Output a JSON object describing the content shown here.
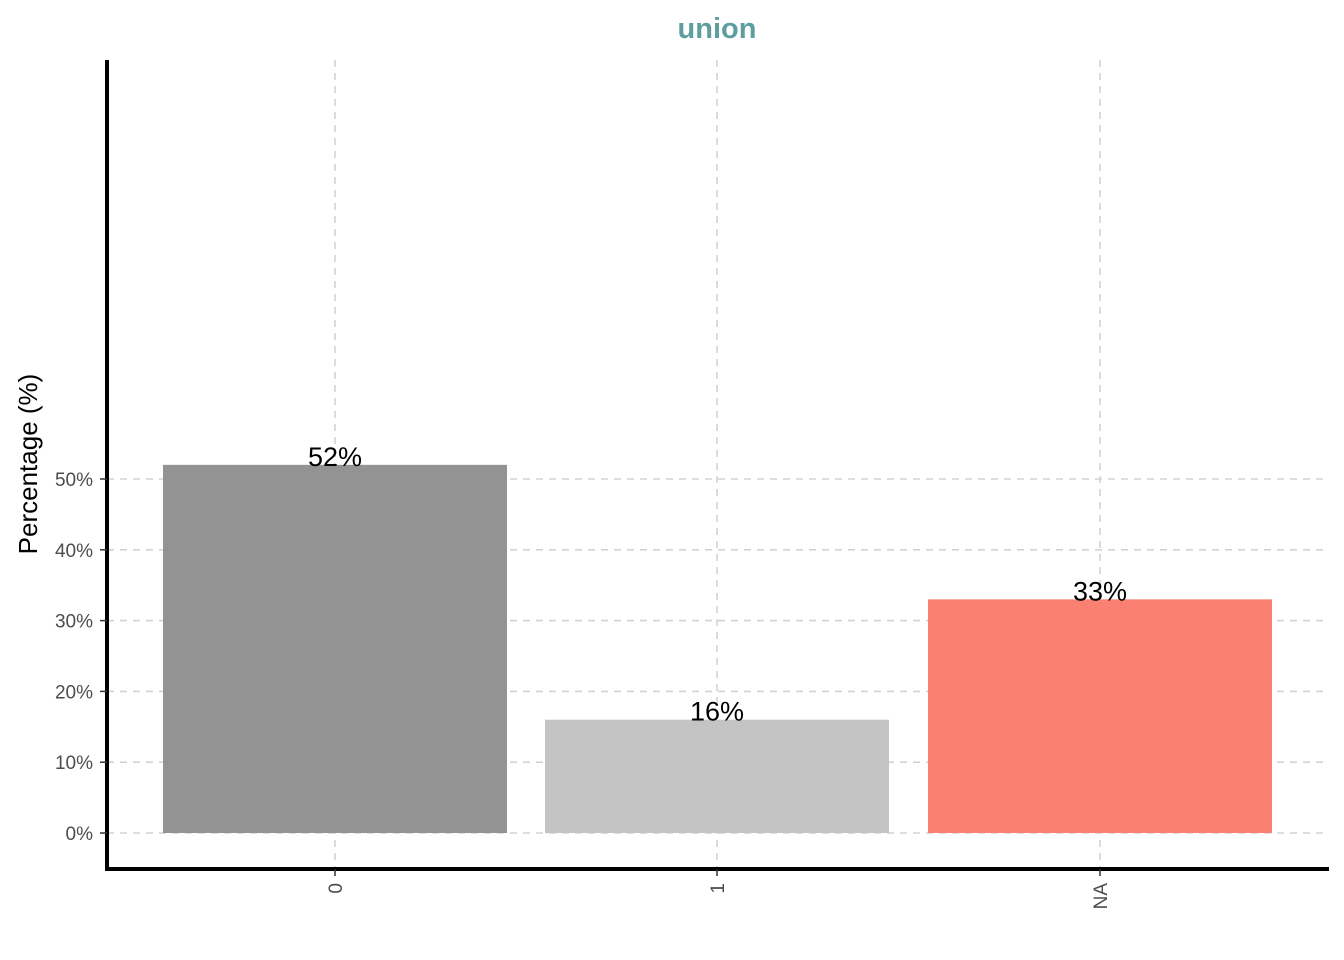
{
  "chart_data": {
    "type": "bar",
    "title": "union",
    "title_color": "#5f9ea0",
    "xlabel": "",
    "ylabel": "Percentage (%)",
    "categories": [
      "0",
      "1",
      "NA"
    ],
    "values": [
      52,
      16,
      33
    ],
    "data_labels": [
      "52%",
      "16%",
      "33%"
    ],
    "bar_colors": [
      "#939393",
      "#c4c4c4",
      "#fa8072"
    ],
    "ylim": [
      0,
      54.5
    ],
    "yticks": [
      0,
      10,
      20,
      30,
      40,
      50
    ],
    "ytick_labels": [
      "0%",
      "10%",
      "20%",
      "30%",
      "40%",
      "50%"
    ],
    "grid": true,
    "grid_style": "dashed",
    "legend": "none"
  }
}
